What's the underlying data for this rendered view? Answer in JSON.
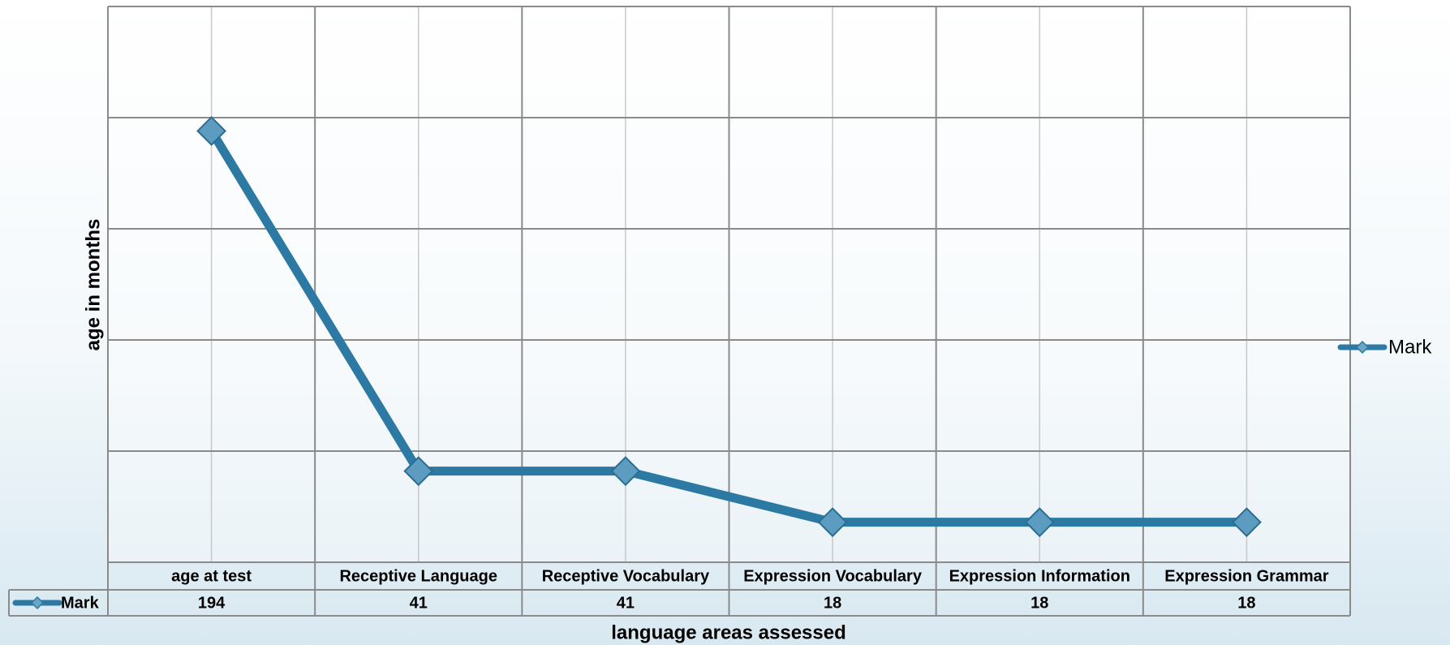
{
  "chart_data": {
    "type": "line",
    "x_label": "language areas assessed",
    "y_label": "age in months",
    "categories": [
      "age at test",
      "Receptive Language",
      "Receptive Vocabulary",
      "Expression Vocabulary",
      "Expression Information",
      "Expression Grammar"
    ],
    "series": [
      {
        "name": "Mark",
        "color": "#2c7aa3",
        "values": [
          194,
          41,
          41,
          18,
          18,
          18
        ]
      }
    ],
    "ylim": [
      0,
      250
    ],
    "yticks": [
      0,
      50,
      100,
      150,
      200,
      250
    ],
    "grid": true,
    "legend": "right"
  }
}
